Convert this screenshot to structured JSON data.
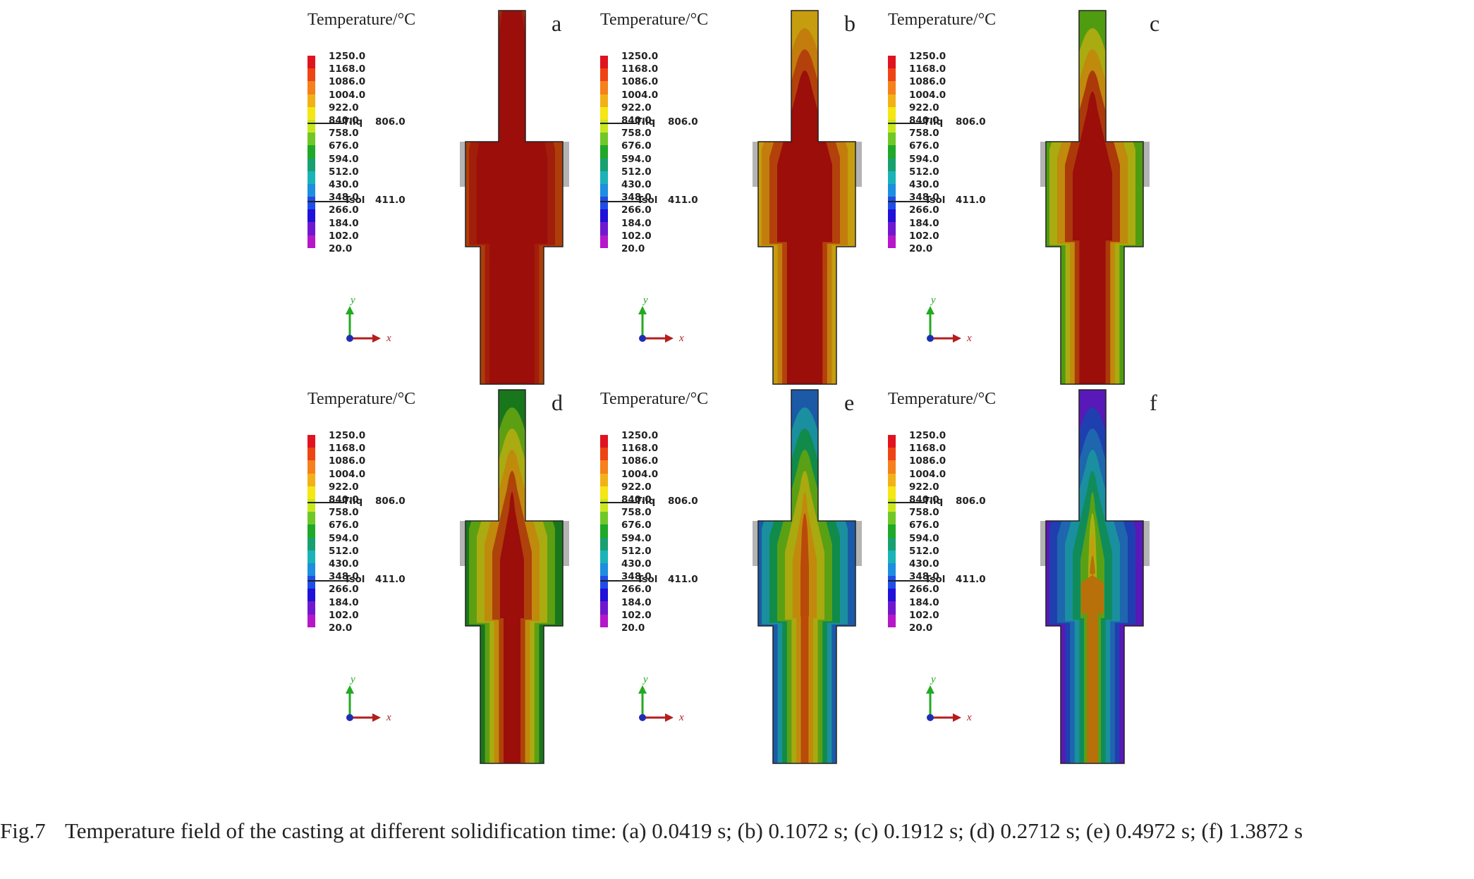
{
  "figure": {
    "panels": [
      {
        "id": "a",
        "title": "Temperature/°C",
        "letter": "a",
        "zones": [
          "#9b0e0a",
          "#a11e0a",
          "#ad3d09"
        ]
      },
      {
        "id": "b",
        "title": "Temperature/°C",
        "letter": "b",
        "zones": [
          "#9b0e0a",
          "#b3410b",
          "#c27d0c",
          "#c59d0e"
        ]
      },
      {
        "id": "c",
        "title": "Temperature/°C",
        "letter": "c",
        "zones": [
          "#9b0e0a",
          "#ac390a",
          "#c08a0c",
          "#a9ab10",
          "#4f9c10"
        ]
      },
      {
        "id": "d",
        "title": "Temperature/°C",
        "letter": "d",
        "zones": [
          "#9b0e0a",
          "#ae420a",
          "#c08a0c",
          "#a9ab10",
          "#5d9f12",
          "#18771c"
        ]
      },
      {
        "id": "e",
        "title": "Temperature/°C",
        "letter": "e",
        "zones": [
          "#b94a0a",
          "#c28a0c",
          "#a9a910",
          "#5aa015",
          "#108b4a",
          "#1a8fa0",
          "#1c5aa8"
        ]
      },
      {
        "id": "f",
        "title": "Temperature/°C",
        "letter": "f",
        "zones": [
          "#b8700b",
          "#c29e0d",
          "#a9b010",
          "#5aa015",
          "#108c5a",
          "#1a8fa0",
          "#1e66ae",
          "#1f3fb0",
          "#5918b8"
        ]
      }
    ],
    "legend": {
      "ticks": [
        "1250.0",
        "1168.0",
        "1086.0",
        "1004.0",
        "922.0",
        "840.0",
        "758.0",
        "676.0",
        "594.0",
        "512.0",
        "430.0",
        "348.0",
        "266.0",
        "184.0",
        "102.0",
        "20.0"
      ],
      "colors": [
        "#e0141e",
        "#ee4414",
        "#f6801c",
        "#f2b217",
        "#f5e614",
        "#c8e81e",
        "#70c828",
        "#20a828",
        "#18a070",
        "#1ab4b8",
        "#1e8ee0",
        "#1e4ee8",
        "#2010d8",
        "#7018d0",
        "#b418c8"
      ],
      "liq_label": "Tliq",
      "liq_value": "806.0",
      "sol_label": "Tsol",
      "sol_value": "411.0"
    },
    "axes": {
      "x_label": "x",
      "y_label": "y"
    }
  },
  "caption": {
    "number": "Fig.7",
    "text": "Temperature field of the casting at different solidification time: (a) 0.0419 s; (b) 0.1072 s; (c) 0.1912 s; (d) 0.2712 s; (e) 0.4972 s; (f) 1.3872 s"
  },
  "colors": {
    "gray": "#b4b4b4",
    "outline": "#222222"
  }
}
